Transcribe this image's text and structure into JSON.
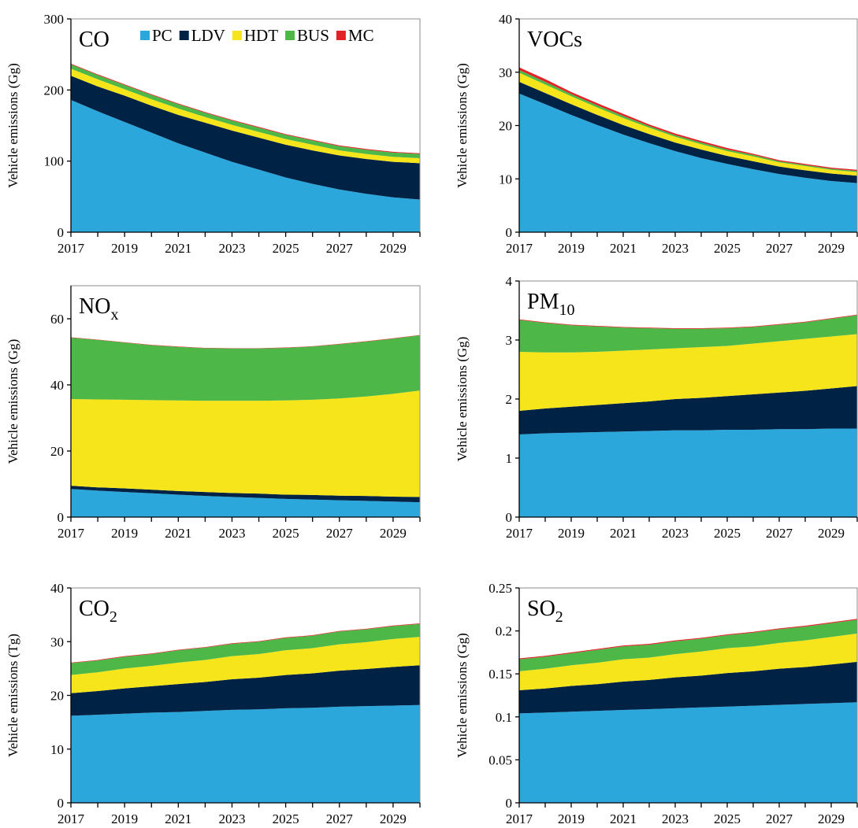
{
  "chart_data": [
    {
      "type": "stacked-area",
      "title": "CO",
      "y_label": "Vehicle emissions (Gg)",
      "legend": true,
      "x": [
        2017,
        2018,
        2019,
        2020,
        2021,
        2022,
        2023,
        2024,
        2025,
        2026,
        2027,
        2028,
        2029,
        2030
      ],
      "xlim": [
        2017,
        2030
      ],
      "xticks": [
        2017,
        2019,
        2021,
        2023,
        2025,
        2027,
        2029
      ],
      "xminorticks": [
        2018,
        2020,
        2022,
        2024,
        2026,
        2028,
        2030
      ],
      "ylim": [
        0,
        300
      ],
      "yticks": [
        0,
        100,
        200,
        300
      ],
      "series": [
        {
          "name": "PC",
          "color": "#2ca7dc",
          "values": [
            186,
            170,
            155,
            140,
            125,
            112,
            99,
            88,
            77,
            68,
            60,
            54,
            49,
            46
          ]
        },
        {
          "name": "LDV",
          "color": "#002244",
          "values": [
            34,
            35,
            37,
            38,
            40,
            42,
            44,
            45,
            46,
            47,
            48,
            49,
            50,
            51
          ]
        },
        {
          "name": "HDT",
          "color": "#f6e51b",
          "values": [
            10,
            10,
            9,
            9,
            9,
            8,
            8,
            8,
            8,
            8,
            7,
            7,
            7,
            7
          ]
        },
        {
          "name": "BUS",
          "color": "#4db748",
          "values": [
            6,
            6,
            6,
            6,
            6,
            6,
            6,
            6,
            6,
            6,
            6,
            6,
            6,
            6
          ]
        },
        {
          "name": "MC",
          "color": "#e32228",
          "values": [
            1,
            1,
            1,
            1,
            1,
            1,
            1,
            1,
            1,
            1,
            1,
            1,
            1,
            1
          ]
        }
      ]
    },
    {
      "type": "stacked-area",
      "title": "VOCs",
      "y_label": "Vehicle emissions (Gg)",
      "x": [
        2017,
        2018,
        2019,
        2020,
        2021,
        2022,
        2023,
        2024,
        2025,
        2026,
        2027,
        2028,
        2029,
        2030
      ],
      "xlim": [
        2017,
        2030
      ],
      "xticks": [
        2017,
        2019,
        2021,
        2023,
        2025,
        2027,
        2029
      ],
      "xminorticks": [
        2018,
        2020,
        2022,
        2024,
        2026,
        2028,
        2030
      ],
      "ylim": [
        0,
        40
      ],
      "yticks": [
        0,
        10,
        20,
        30,
        40
      ],
      "series": [
        {
          "name": "PC",
          "color": "#2ca7dc",
          "values": [
            26,
            24,
            22,
            20.1,
            18.3,
            16.7,
            15.2,
            13.9,
            12.8,
            11.8,
            10.9,
            10.2,
            9.6,
            9.2
          ]
        },
        {
          "name": "LDV",
          "color": "#002244",
          "values": [
            2.2,
            2.1,
            2.0,
            1.9,
            1.8,
            1.7,
            1.6,
            1.6,
            1.5,
            1.5,
            1.4,
            1.4,
            1.4,
            1.4
          ]
        },
        {
          "name": "HDT",
          "color": "#f6e51b",
          "values": [
            1.7,
            1.6,
            1.5,
            1.4,
            1.3,
            1.2,
            1.1,
            1.0,
            0.9,
            0.9,
            0.8,
            0.8,
            0.7,
            0.7
          ]
        },
        {
          "name": "BUS",
          "color": "#4db748",
          "values": [
            0.5,
            0.5,
            0.4,
            0.4,
            0.4,
            0.3,
            0.3,
            0.3,
            0.3,
            0.3,
            0.2,
            0.2,
            0.2,
            0.2
          ]
        },
        {
          "name": "MC",
          "color": "#e32228",
          "values": [
            0.5,
            0.5,
            0.4,
            0.4,
            0.4,
            0.3,
            0.3,
            0.3,
            0.3,
            0.2,
            0.2,
            0.2,
            0.2,
            0.2
          ]
        }
      ]
    },
    {
      "type": "stacked-area",
      "title": "NO",
      "title_subscript": "x",
      "y_label": "Vehicle emissions (Gg)",
      "x": [
        2017,
        2018,
        2019,
        2020,
        2021,
        2022,
        2023,
        2024,
        2025,
        2026,
        2027,
        2028,
        2029,
        2030
      ],
      "xlim": [
        2017,
        2030
      ],
      "xticks": [
        2017,
        2019,
        2021,
        2023,
        2025,
        2027,
        2029
      ],
      "xminorticks": [
        2018,
        2020,
        2022,
        2024,
        2026,
        2028,
        2030
      ],
      "ylim": [
        0,
        70
      ],
      "yticks": [
        0,
        20,
        40,
        60
      ],
      "series": [
        {
          "name": "PC",
          "color": "#2ca7dc",
          "values": [
            8.5,
            8.0,
            7.6,
            7.2,
            6.8,
            6.4,
            6.1,
            5.8,
            5.5,
            5.3,
            5.1,
            4.9,
            4.7,
            4.5
          ]
        },
        {
          "name": "LDV",
          "color": "#002244",
          "values": [
            1.0,
            1.0,
            1.1,
            1.1,
            1.1,
            1.2,
            1.2,
            1.3,
            1.3,
            1.4,
            1.4,
            1.5,
            1.5,
            1.6
          ]
        },
        {
          "name": "HDT",
          "color": "#f6e51b",
          "values": [
            26.2,
            26.6,
            26.8,
            27.1,
            27.4,
            27.6,
            27.9,
            28.1,
            28.5,
            28.8,
            29.4,
            30.1,
            31.1,
            32.2
          ]
        },
        {
          "name": "BUS",
          "color": "#4db748",
          "values": [
            18.6,
            18.0,
            17.3,
            16.6,
            16.2,
            15.9,
            15.8,
            15.8,
            15.9,
            16.1,
            16.4,
            16.6,
            16.7,
            16.7
          ]
        },
        {
          "name": "MC",
          "color": "#e32228",
          "values": [
            0.1,
            0.1,
            0.1,
            0.1,
            0.1,
            0.1,
            0.1,
            0.1,
            0.1,
            0.1,
            0.1,
            0.1,
            0.1,
            0.1
          ]
        }
      ]
    },
    {
      "type": "stacked-area",
      "title": "PM",
      "title_subscript": "10",
      "y_label": "Vehicle emissions (Gg)",
      "x": [
        2017,
        2018,
        2019,
        2020,
        2021,
        2022,
        2023,
        2024,
        2025,
        2026,
        2027,
        2028,
        2029,
        2030
      ],
      "xlim": [
        2017,
        2030
      ],
      "xticks": [
        2017,
        2019,
        2021,
        2023,
        2025,
        2027,
        2029
      ],
      "xminorticks": [
        2018,
        2020,
        2022,
        2024,
        2026,
        2028,
        2030
      ],
      "ylim": [
        0,
        4
      ],
      "yticks": [
        0,
        1,
        2,
        3,
        4
      ],
      "series": [
        {
          "name": "PC",
          "color": "#2ca7dc",
          "values": [
            1.4,
            1.42,
            1.43,
            1.44,
            1.45,
            1.46,
            1.47,
            1.47,
            1.48,
            1.48,
            1.49,
            1.49,
            1.5,
            1.5
          ]
        },
        {
          "name": "LDV",
          "color": "#002244",
          "values": [
            0.4,
            0.42,
            0.44,
            0.46,
            0.48,
            0.5,
            0.53,
            0.55,
            0.57,
            0.6,
            0.62,
            0.65,
            0.68,
            0.72
          ]
        },
        {
          "name": "HDT",
          "color": "#f6e51b",
          "values": [
            1.0,
            0.95,
            0.92,
            0.9,
            0.89,
            0.88,
            0.86,
            0.86,
            0.85,
            0.86,
            0.87,
            0.88,
            0.88,
            0.88
          ]
        },
        {
          "name": "BUS",
          "color": "#4db748",
          "values": [
            0.54,
            0.5,
            0.46,
            0.43,
            0.39,
            0.36,
            0.33,
            0.31,
            0.3,
            0.28,
            0.28,
            0.28,
            0.3,
            0.32
          ]
        },
        {
          "name": "MC",
          "color": "#e32228",
          "values": [
            0.01,
            0.01,
            0.01,
            0.01,
            0.01,
            0.01,
            0.01,
            0.01,
            0.01,
            0.01,
            0.01,
            0.01,
            0.01,
            0.01
          ]
        }
      ]
    },
    {
      "type": "stacked-area",
      "title": "CO",
      "title_subscript": "2",
      "y_label": "Vehicle emissions (Tg)",
      "x": [
        2017,
        2018,
        2019,
        2020,
        2021,
        2022,
        2023,
        2024,
        2025,
        2026,
        2027,
        2028,
        2029,
        2030
      ],
      "xlim": [
        2017,
        2030
      ],
      "xticks": [
        2017,
        2019,
        2021,
        2023,
        2025,
        2027,
        2029
      ],
      "xminorticks": [
        2018,
        2020,
        2022,
        2024,
        2026,
        2028,
        2030
      ],
      "ylim": [
        0,
        40
      ],
      "yticks": [
        0,
        10,
        20,
        30,
        40
      ],
      "series": [
        {
          "name": "PC",
          "color": "#2ca7dc",
          "values": [
            16.2,
            16.4,
            16.6,
            16.8,
            16.9,
            17.1,
            17.3,
            17.4,
            17.6,
            17.7,
            17.9,
            18.0,
            18.1,
            18.2
          ]
        },
        {
          "name": "LDV",
          "color": "#002244",
          "values": [
            4.2,
            4.4,
            4.7,
            4.9,
            5.2,
            5.4,
            5.7,
            5.9,
            6.2,
            6.4,
            6.7,
            6.9,
            7.2,
            7.4
          ]
        },
        {
          "name": "HDT",
          "color": "#f6e51b",
          "values": [
            3.4,
            3.5,
            3.7,
            3.8,
            4.0,
            4.1,
            4.3,
            4.4,
            4.6,
            4.7,
            4.9,
            5.0,
            5.2,
            5.3
          ]
        },
        {
          "name": "BUS",
          "color": "#4db748",
          "values": [
            2.2,
            2.2,
            2.2,
            2.2,
            2.3,
            2.3,
            2.3,
            2.3,
            2.3,
            2.3,
            2.4,
            2.4,
            2.4,
            2.4
          ]
        },
        {
          "name": "MC",
          "color": "#e32228",
          "values": [
            0.1,
            0.1,
            0.1,
            0.1,
            0.1,
            0.1,
            0.1,
            0.1,
            0.1,
            0.1,
            0.1,
            0.1,
            0.1,
            0.1
          ]
        }
      ]
    },
    {
      "type": "stacked-area",
      "title": "SO",
      "title_subscript": "2",
      "y_label": "Vehicle emissions (Gg)",
      "x": [
        2017,
        2018,
        2019,
        2020,
        2021,
        2022,
        2023,
        2024,
        2025,
        2026,
        2027,
        2028,
        2029,
        2030
      ],
      "xlim": [
        2017,
        2030
      ],
      "xticks": [
        2017,
        2019,
        2021,
        2023,
        2025,
        2027,
        2029
      ],
      "xminorticks": [
        2018,
        2020,
        2022,
        2024,
        2026,
        2028,
        2030
      ],
      "ylim": [
        0,
        0.25
      ],
      "yticks": [
        0,
        0.05,
        0.1,
        0.15,
        0.2,
        0.25
      ],
      "series": [
        {
          "name": "PC",
          "color": "#2ca7dc",
          "values": [
            0.104,
            0.105,
            0.106,
            0.107,
            0.108,
            0.109,
            0.11,
            0.111,
            0.112,
            0.113,
            0.114,
            0.115,
            0.116,
            0.117
          ]
        },
        {
          "name": "LDV",
          "color": "#002244",
          "values": [
            0.027,
            0.028,
            0.03,
            0.031,
            0.033,
            0.034,
            0.036,
            0.037,
            0.039,
            0.04,
            0.042,
            0.043,
            0.045,
            0.047
          ]
        },
        {
          "name": "HDT",
          "color": "#f6e51b",
          "values": [
            0.022,
            0.023,
            0.024,
            0.025,
            0.026,
            0.026,
            0.027,
            0.028,
            0.029,
            0.029,
            0.03,
            0.031,
            0.032,
            0.033
          ]
        },
        {
          "name": "BUS",
          "color": "#4db748",
          "values": [
            0.014,
            0.014,
            0.014,
            0.015,
            0.015,
            0.015,
            0.015,
            0.015,
            0.015,
            0.016,
            0.016,
            0.016,
            0.016,
            0.016
          ]
        },
        {
          "name": "MC",
          "color": "#e32228",
          "values": [
            0.001,
            0.001,
            0.001,
            0.001,
            0.001,
            0.001,
            0.001,
            0.001,
            0.001,
            0.001,
            0.001,
            0.001,
            0.001,
            0.001
          ]
        }
      ]
    }
  ]
}
